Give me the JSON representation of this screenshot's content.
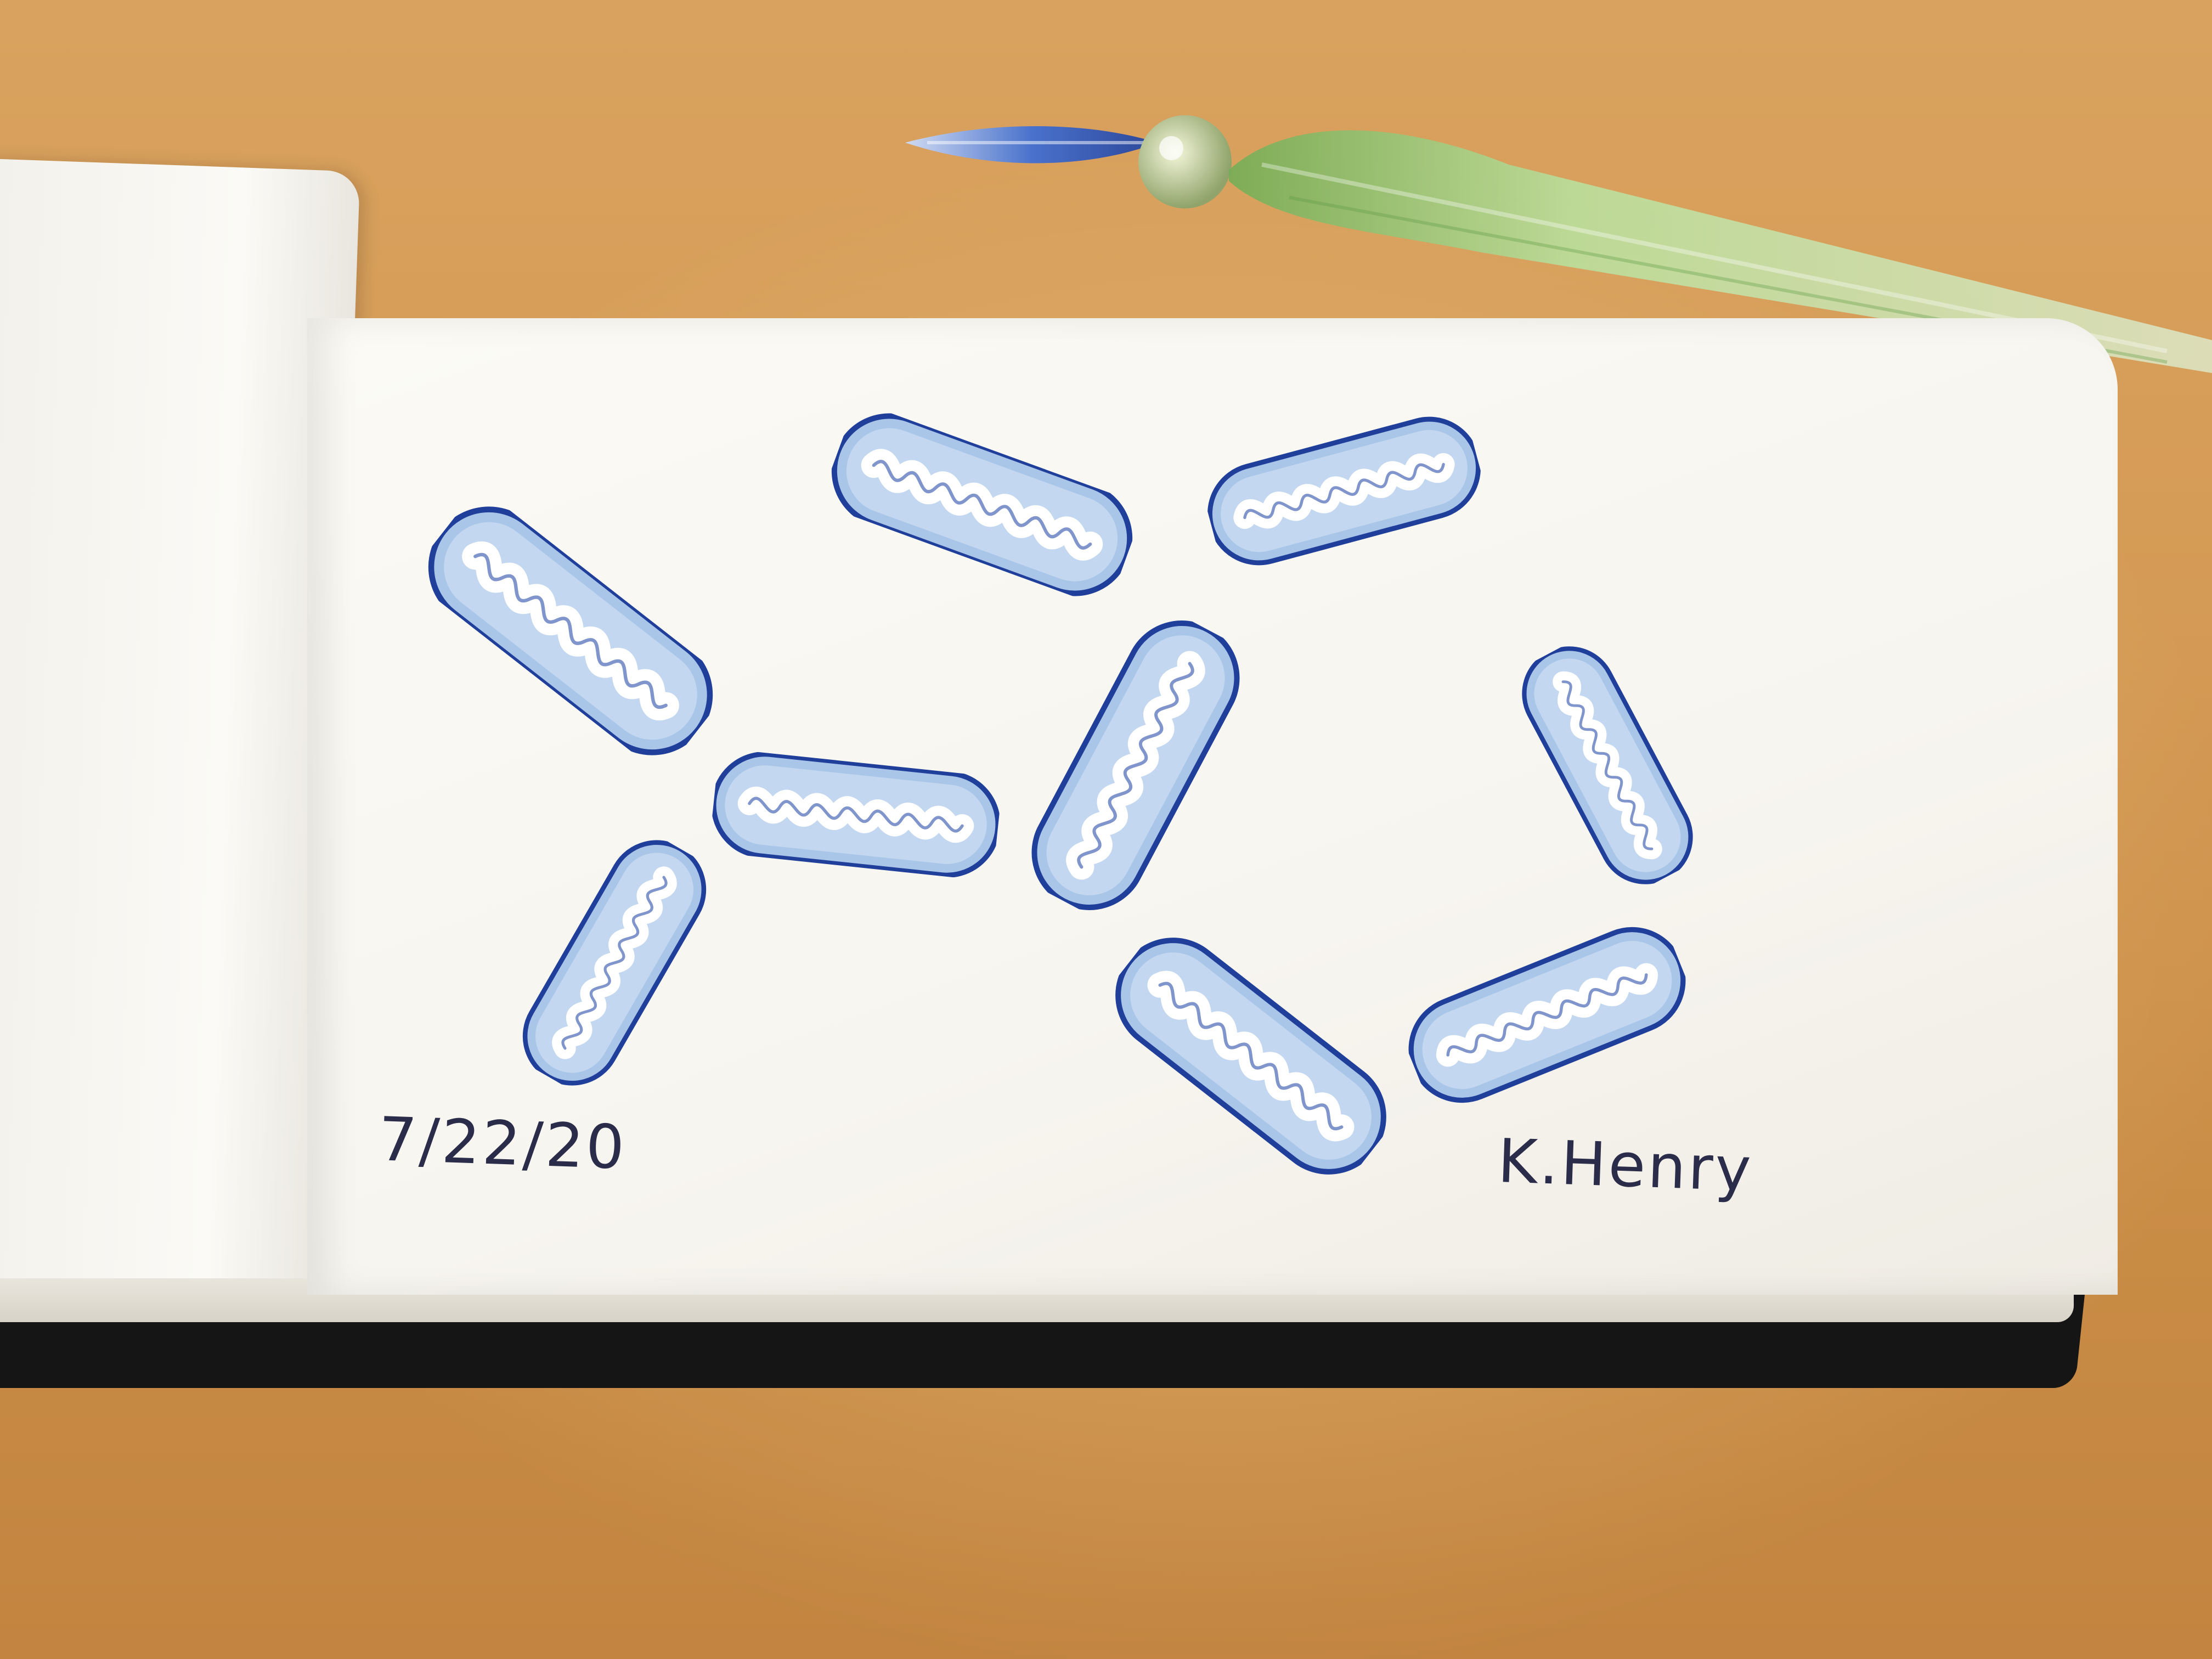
{
  "drawing": {
    "date_text": "7/22/20",
    "artist_text": "K.Henry"
  },
  "colors": {
    "desk": "#d49a55",
    "paper": "#f8f6f0",
    "ink_blue": "#1f3f9a",
    "wash_blue": "#9fbfe3",
    "pen_blue": "#3f6fd0",
    "pen_green": "#9ccf8a",
    "cover": "#151515"
  },
  "icons": {
    "glass-pen": "glass-dip-pen-icon",
    "mitochondrion": "mitochondrion-icon"
  }
}
